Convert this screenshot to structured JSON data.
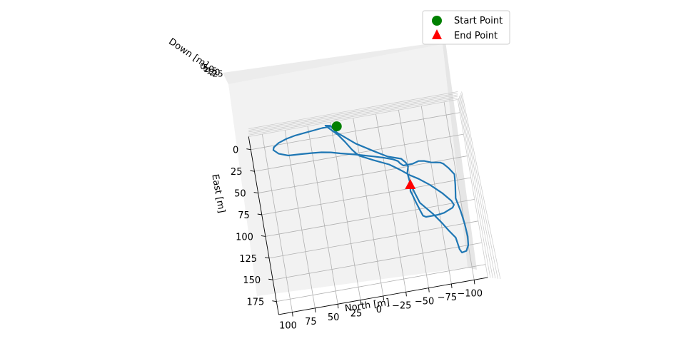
{
  "chart_data": {
    "type": "line",
    "projection": "3d",
    "xlabel": "North [m]",
    "ylabel": "East [m]",
    "zlabel": "Down [m]",
    "x_ticks": [
      "100",
      "75",
      "50",
      "25",
      "0",
      "−25",
      "−50",
      "−75",
      "−100"
    ],
    "y_ticks": [
      "0",
      "25",
      "50",
      "75",
      "100",
      "125",
      "150",
      "175"
    ],
    "z_ticks_visible": "overlapping (unreadable)",
    "xlim": [
      -115,
      115
    ],
    "ylim": [
      -15,
      190
    ],
    "grid": true,
    "legend": {
      "position": "top-right",
      "entries": [
        {
          "label": "Start Point",
          "marker": "circle",
          "color": "#008000"
        },
        {
          "label": "End Point",
          "marker": "triangle",
          "color": "#ff0000"
        }
      ]
    },
    "series": [
      {
        "color": "#1f77b4",
        "north": [
          19,
          21,
          25,
          35,
          45,
          55,
          65,
          75,
          84,
          90,
          91,
          86,
          76,
          62,
          50,
          40,
          30,
          20,
          5,
          -5,
          -15,
          -27,
          -35,
          -40,
          -42,
          -45,
          -55,
          -62,
          -68,
          -75,
          -85,
          -88,
          -93,
          -98,
          -97,
          -95,
          -98,
          -100,
          -101,
          -100,
          -97,
          -92,
          -90,
          -89,
          -88,
          -82,
          -76,
          -68,
          -56,
          -52,
          -49,
          -48,
          -50,
          -48,
          -44,
          -30,
          -16,
          2,
          20,
          24,
          26,
          31,
          19,
          13,
          7,
          1,
          -14,
          -30,
          -38,
          -43,
          -50,
          -59,
          -70,
          -82,
          -90,
          -92,
          -90,
          -85,
          -80,
          -73,
          -66,
          -60,
          -57,
          -55,
          -52,
          -49,
          -48,
          -49
        ],
        "east": [
          -9,
          -10,
          -10,
          -10,
          -9,
          -8,
          -7,
          -5,
          -2,
          2,
          5,
          10,
          14,
          15,
          16,
          17,
          19,
          22,
          26,
          29,
          32,
          36,
          39,
          42,
          45,
          48,
          48,
          46,
          47,
          50,
          52,
          54,
          60,
          68,
          80,
          95,
          110,
          125,
          140,
          150,
          156,
          157,
          153,
          146,
          139,
          130,
          120,
          108,
          93,
          80,
          68,
          57,
          50,
          45,
          40,
          35,
          26,
          14,
          -2,
          -8,
          -11,
          -12,
          1,
          10,
          20,
          28,
          36,
          44,
          50,
          54,
          60,
          66,
          75,
          87,
          97,
          102,
          105,
          107,
          109,
          110,
          110,
          110,
          108,
          102,
          92,
          81,
          78,
          71
        ]
      }
    ],
    "markers": [
      {
        "label": "Start Point",
        "north": 19,
        "east": -9
      },
      {
        "label": "End Point",
        "north": -49,
        "east": 71
      }
    ]
  }
}
